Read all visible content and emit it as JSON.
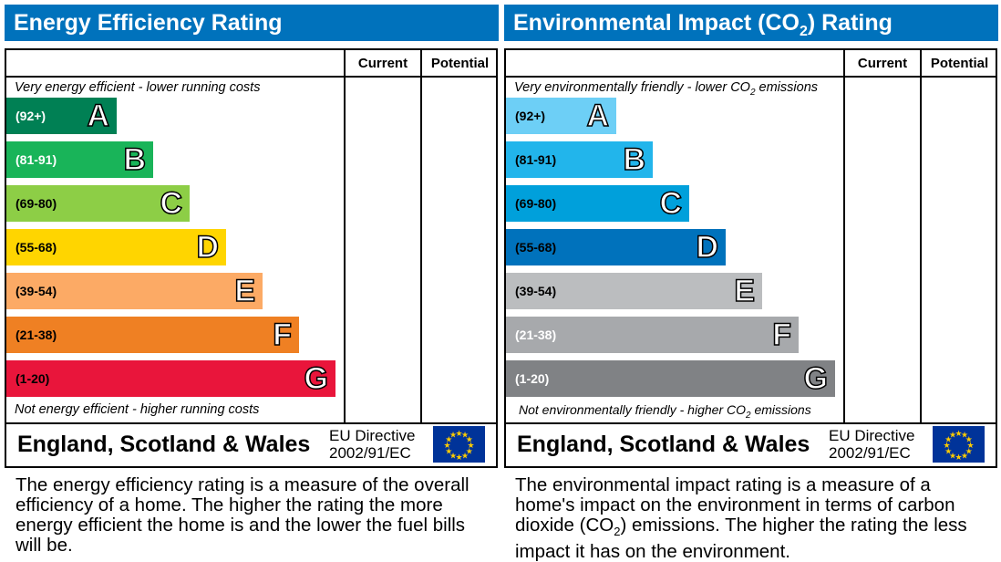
{
  "chart_data": [
    {
      "type": "bar",
      "title": "Energy Efficiency Rating",
      "columns": [
        "Current",
        "Potential"
      ],
      "top_caption": "Very energy efficient - lower running costs",
      "bottom_caption": "Not energy efficient - higher running costs",
      "categories": [
        "A",
        "B",
        "C",
        "D",
        "E",
        "F",
        "G"
      ],
      "ranges": [
        "(92+)",
        "(81-91)",
        "(69-80)",
        "(55-68)",
        "(39-54)",
        "(21-38)",
        "(1-20)"
      ],
      "colors": [
        "#008054",
        "#19b459",
        "#8dce46",
        "#ffd500",
        "#fcaa65",
        "#ef8023",
        "#e9153b"
      ],
      "range_text_colors": [
        "#fff",
        "#fff",
        "#000",
        "#000",
        "#000",
        "#000",
        "#000"
      ],
      "current": null,
      "potential": null,
      "region": "England, Scotland & Wales",
      "directive": [
        "EU Directive",
        "2002/91/EC"
      ],
      "description": "The energy efficiency rating is a measure of the overall efficiency of a home. The higher the rating the more energy efficient the home is and the lower the fuel bills will be."
    },
    {
      "type": "bar",
      "title": "Environmental Impact (CO2) Rating",
      "columns": [
        "Current",
        "Potential"
      ],
      "top_caption": "Very environmentally friendly - lower CO2 emissions",
      "bottom_caption": "Not environmentally friendly - higher CO2 emissions",
      "categories": [
        "A",
        "B",
        "C",
        "D",
        "E",
        "F",
        "G"
      ],
      "ranges": [
        "(92+)",
        "(81-91)",
        "(69-80)",
        "(55-68)",
        "(39-54)",
        "(21-38)",
        "(1-20)"
      ],
      "colors": [
        "#6dcff6",
        "#22b5eb",
        "#00a0db",
        "#0072bc",
        "#bbbdbf",
        "#a7a9ac",
        "#808285"
      ],
      "range_text_colors": [
        "#000",
        "#000",
        "#000",
        "#000",
        "#000",
        "#fff",
        "#fff"
      ],
      "current": null,
      "potential": null,
      "region": "England, Scotland & Wales",
      "directive": [
        "EU Directive",
        "2002/91/EC"
      ],
      "description": "The environmental impact rating is a measure of a home's impact on the environment in terms of carbon dioxide (CO2) emissions. The higher the rating the less impact it has on the environment."
    }
  ]
}
